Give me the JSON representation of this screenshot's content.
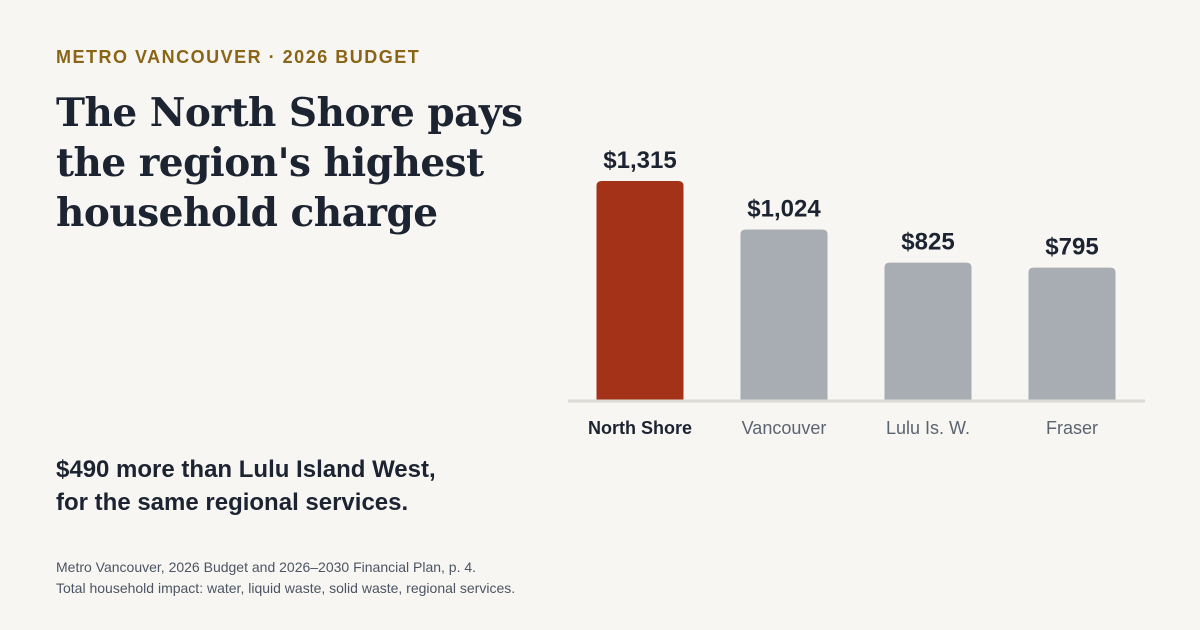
{
  "header": {
    "kicker": "METRO VANCOUVER · 2026 BUDGET",
    "headline": "The North Shore pays the region's highest household charge"
  },
  "takeaway": {
    "line1": "$490 more than Lulu Island West,",
    "line2": "for the same regional services."
  },
  "source": {
    "line1": "Metro Vancouver, 2026 Budget and 2026–2030 Financial Plan, p. 4.",
    "line2": "Total household impact: water, liquid waste, solid waste, regional services."
  },
  "colors": {
    "background": "#f8f6f2",
    "highlight": "#a33218",
    "bar": "#a7adb3",
    "baseline": "#dcdad5",
    "kicker": "#8a6516",
    "text": "#1c2331"
  },
  "chart_data": {
    "type": "bar",
    "categories": [
      "North Shore",
      "Vancouver",
      "Lulu Is. W.",
      "Fraser"
    ],
    "values": [
      1315,
      1024,
      825,
      795
    ],
    "value_labels": [
      "$1,315",
      "$1,024",
      "$825",
      "$795"
    ],
    "highlight_index": 0,
    "ylim": [
      0,
      1315
    ],
    "grid": false,
    "legend": "none",
    "xlabel": "",
    "ylabel": ""
  }
}
